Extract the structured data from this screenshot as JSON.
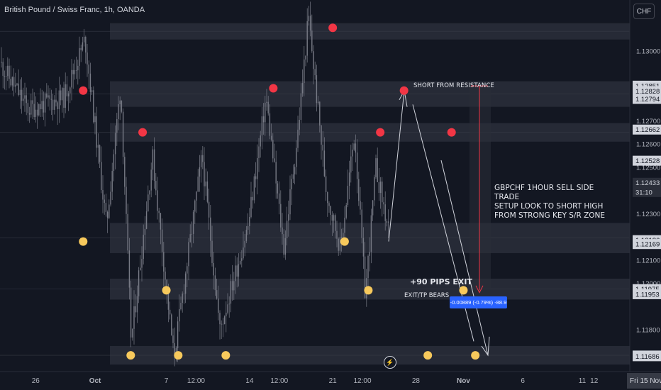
{
  "window": {
    "title": "British Pound / Swiss Franc, 1h, OANDA",
    "currency": "CHF"
  },
  "theme": {
    "background": "#131722",
    "candle": "#787b86",
    "resistance_dot": "#f23645",
    "support_dot": "#f7c95c",
    "zone": "#2a2e39",
    "axis_text": "#b2b5be",
    "price_badge_bg": "#d1d4dc",
    "countdown_bg": "#2a2e39"
  },
  "chart_data": {
    "type": "candlestick",
    "symbol": "GBPCHF",
    "interval": "1h",
    "ylim": [
      1.1162,
      1.1322
    ],
    "xlim": [
      "2024-09-23",
      "2024-11-15"
    ],
    "y_tick_labels": [
      {
        "label": "1.13000",
        "value": 1.13
      },
      {
        "label": "1.12700",
        "value": 1.127
      },
      {
        "label": "1.12600",
        "value": 1.126
      },
      {
        "label": "1.12500",
        "value": 1.125
      },
      {
        "label": "1.12300",
        "value": 1.123
      },
      {
        "label": "1.12100",
        "value": 1.121
      },
      {
        "label": "1.12000",
        "value": 1.12
      },
      {
        "label": "1.11800",
        "value": 1.118
      },
      {
        "label": "1.11700",
        "value": 1.117
      }
    ],
    "price_badges": [
      {
        "label": "1.12851",
        "value": 1.12851,
        "style": "light"
      },
      {
        "label": "1.12828",
        "value": 1.12828,
        "style": "light"
      },
      {
        "label": "1.12794",
        "value": 1.12794,
        "style": "light"
      },
      {
        "label": "1.12662",
        "value": 1.12662,
        "style": "light"
      },
      {
        "label": "1.12528",
        "value": 1.12528,
        "style": "light"
      },
      {
        "label": "1.12433",
        "value": 1.12433,
        "style": "dark"
      },
      {
        "label": "31:10",
        "value": 1.12393,
        "style": "dark"
      },
      {
        "label": "1.12186",
        "value": 1.12186,
        "style": "light"
      },
      {
        "label": "1.12169",
        "value": 1.12169,
        "style": "light"
      },
      {
        "label": "1.11975",
        "value": 1.11975,
        "style": "light"
      },
      {
        "label": "1.11953",
        "value": 1.11953,
        "style": "light"
      },
      {
        "label": "1.11689",
        "value": 1.11689,
        "style": "light"
      },
      {
        "label": "1.11686",
        "value": 1.11686,
        "style": "light"
      }
    ],
    "x_tick_labels": [
      {
        "label": "26",
        "date": "2024-09-26"
      },
      {
        "label": "Oct",
        "date": "2024-10-01"
      },
      {
        "label": "7",
        "date": "2024-10-07"
      },
      {
        "label": "12:00",
        "date": "2024-10-09T12:00"
      },
      {
        "label": "14",
        "date": "2024-10-14"
      },
      {
        "label": "12:00",
        "date": "2024-10-16T12:00"
      },
      {
        "label": "21",
        "date": "2024-10-21"
      },
      {
        "label": "12:00",
        "date": "2024-10-23T12:00"
      },
      {
        "label": "28",
        "date": "2024-10-28"
      },
      {
        "label": "Nov",
        "date": "2024-11-01"
      },
      {
        "label": "6",
        "date": "2024-11-06"
      },
      {
        "label": "11",
        "date": "2024-11-11"
      },
      {
        "label": "12",
        "date": "2024-11-12"
      },
      {
        "label": "Fri 15 Nov",
        "date": "2024-11-15"
      }
    ],
    "zones": [
      {
        "name": "supply-zone-top",
        "from": 1.1305,
        "to": 1.1312
      },
      {
        "name": "supply-zone-1",
        "from": 1.1276,
        "to": 1.1287
      },
      {
        "name": "supply-zone-2",
        "from": 1.1261,
        "to": 1.1269
      },
      {
        "name": "mid-zone",
        "from": 1.1213,
        "to": 1.1226
      },
      {
        "name": "support-zone",
        "from": 1.1193,
        "to": 1.1202
      },
      {
        "name": "demand-zone-bottom",
        "from": 1.1165,
        "to": 1.1173
      }
    ],
    "resistance_markers": [
      {
        "date": "2024-09-30",
        "price": 1.1283
      },
      {
        "date": "2024-10-05",
        "price": 1.1265
      },
      {
        "date": "2024-10-16",
        "price": 1.1284
      },
      {
        "date": "2024-10-21",
        "price": 1.131
      },
      {
        "date": "2024-10-25",
        "price": 1.1265
      },
      {
        "date": "2024-10-27",
        "price": 1.1283
      },
      {
        "date": "2024-10-31",
        "price": 1.1265
      }
    ],
    "support_markers": [
      {
        "date": "2024-09-30",
        "price": 1.1218
      },
      {
        "date": "2024-10-22",
        "price": 1.1218
      },
      {
        "date": "2024-10-07",
        "price": 1.1197
      },
      {
        "date": "2024-10-24",
        "price": 1.1197
      },
      {
        "date": "2024-11-01",
        "price": 1.1197
      },
      {
        "date": "2024-10-04",
        "price": 1.1169
      },
      {
        "date": "2024-10-08",
        "price": 1.1169
      },
      {
        "date": "2024-10-12",
        "price": 1.1169
      },
      {
        "date": "2024-10-29",
        "price": 1.1169
      },
      {
        "date": "2024-11-02",
        "price": 1.1169
      }
    ],
    "annotations": {
      "short_label": "SHORT FROM RESISTANCE",
      "setup_text": [
        "GBPCHF 1HOUR SELL SIDE TRADE",
        "SETUP LOOK TO SHORT HIGH",
        "FROM STRONG KEY S/R ZONE"
      ],
      "pips_label": "+90 PIPS EXIT",
      "exit_label": "EXIT/TP BEARS",
      "measure_tooltip": "-0.00889 (-0.79%) -88.9"
    },
    "grid": false,
    "legend": "none"
  }
}
